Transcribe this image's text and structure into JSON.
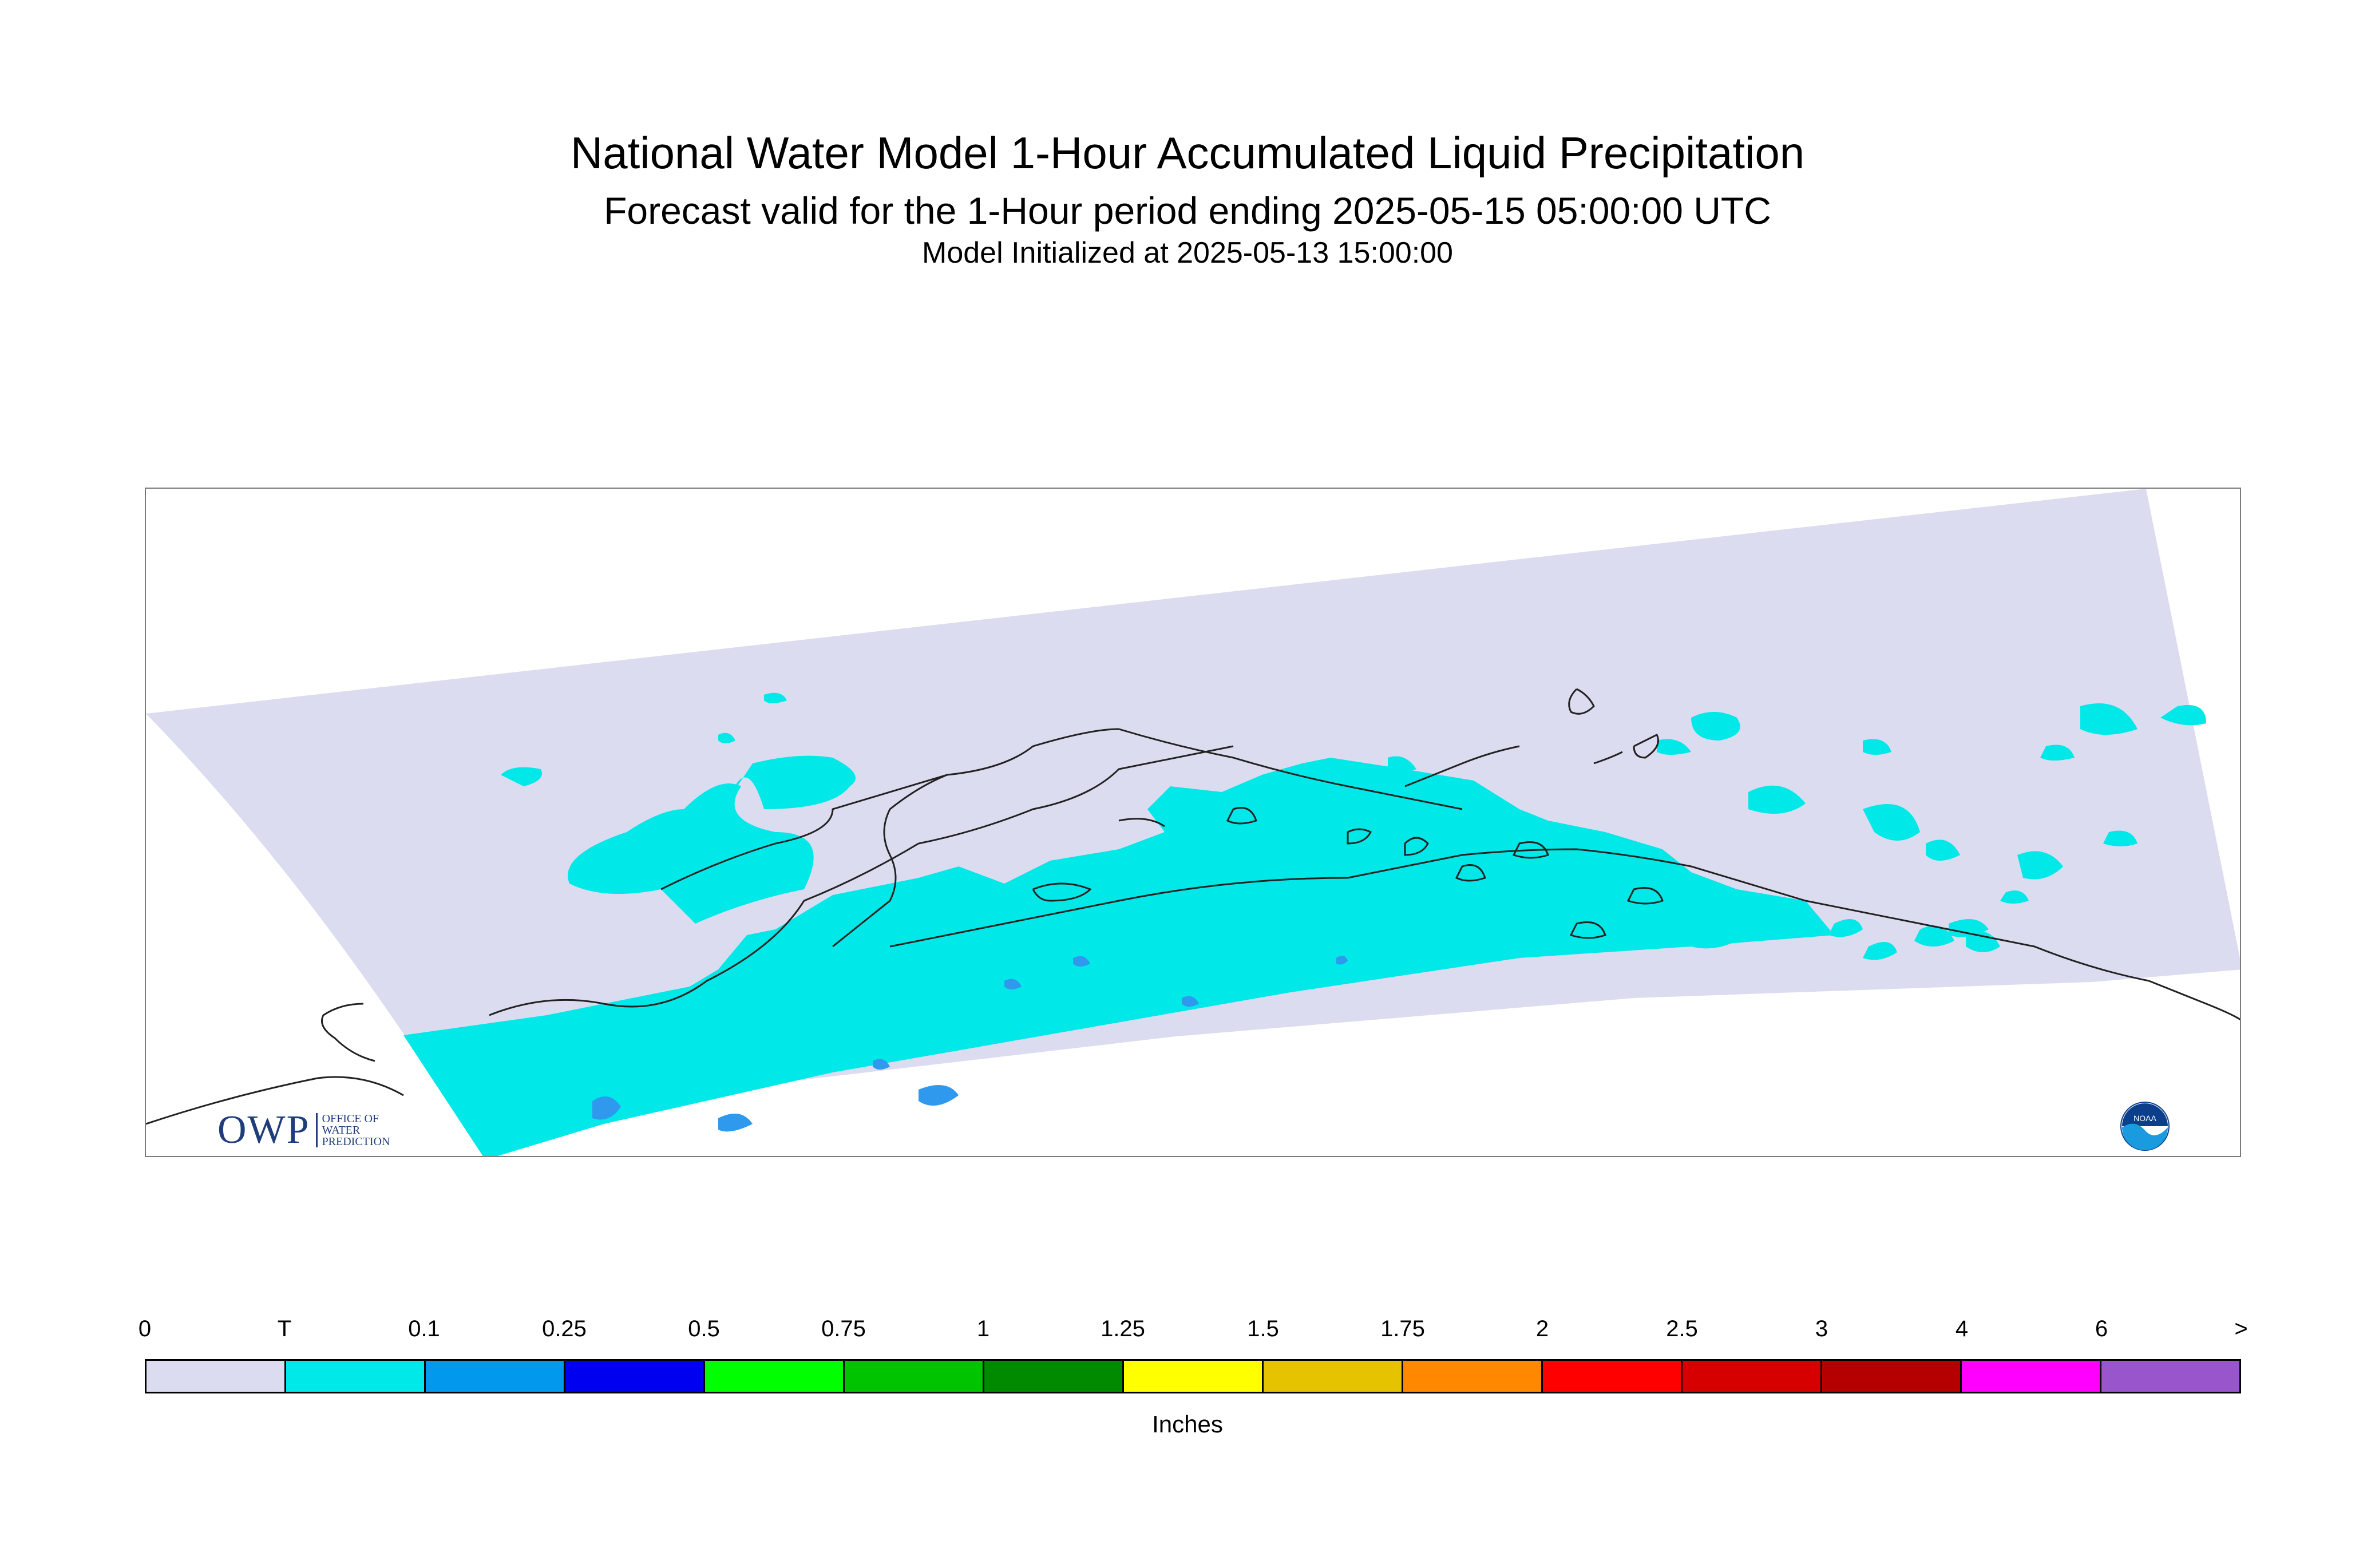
{
  "header": {
    "title": "National Water Model 1-Hour Accumulated Liquid Precipitation",
    "subtitle": "Forecast valid for the 1-Hour period ending 2025-05-15 05:00:00 UTC",
    "init": "Model Initialized at 2025-05-13 15:00:00"
  },
  "legend": {
    "ticks": [
      "0",
      "T",
      "0.1",
      "0.25",
      "0.5",
      "0.75",
      "1",
      "1.25",
      "1.5",
      "1.75",
      "2",
      "2.5",
      "3",
      "4",
      "6",
      ">"
    ],
    "colors": [
      "#dcdcf0",
      "#00e8e8",
      "#0099ee",
      "#0000f0",
      "#00ff00",
      "#00c400",
      "#008a00",
      "#ffff00",
      "#e6c300",
      "#ff8800",
      "#ff0000",
      "#d60000",
      "#b40000",
      "#ff00ff",
      "#9955cc"
    ],
    "units": "Inches"
  },
  "logos": {
    "owp_letters": "OWP",
    "owp_line1": "OFFICE OF",
    "owp_line2": "WATER",
    "owp_line3": "PREDICTION",
    "noaa_text": "NOAA"
  },
  "map": {
    "domain_color": "#dcdcf0",
    "trace_color": "#00e8e8",
    "light_color": "#2f99ee",
    "coast_color": "#222222"
  }
}
